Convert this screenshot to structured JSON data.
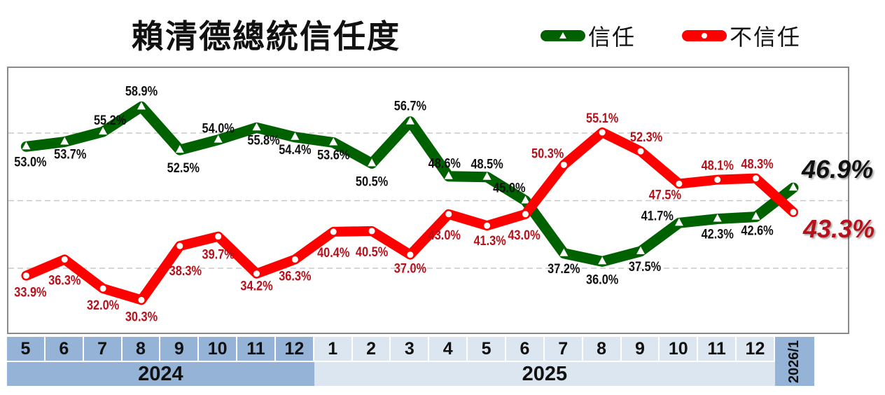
{
  "title": "賴清德總統信任度",
  "legend": [
    {
      "label": "信任",
      "color": "#006100",
      "marker": "triangle"
    },
    {
      "label": "不信任",
      "color": "#ff0000",
      "marker": "circle"
    }
  ],
  "axis": {
    "months": [
      "5",
      "6",
      "7",
      "8",
      "9",
      "10",
      "11",
      "12",
      "1",
      "2",
      "3",
      "4",
      "5",
      "6",
      "7",
      "8",
      "9",
      "10",
      "11",
      "12"
    ],
    "month_years": [
      "2024",
      "2024",
      "2024",
      "2024",
      "2024",
      "2024",
      "2024",
      "2024",
      "2025",
      "2025",
      "2025",
      "2025",
      "2025",
      "2025",
      "2025",
      "2025",
      "2025",
      "2025",
      "2025",
      "2025"
    ],
    "years": [
      {
        "label": "2024",
        "span": 8
      },
      {
        "label": "2025",
        "span": 12
      }
    ],
    "last_column": "2026/1"
  },
  "chart_data": {
    "type": "line",
    "title": "賴清德總統信任度",
    "xlabel": "",
    "ylabel": "",
    "categories": [
      "2024/5",
      "2024/6",
      "2024/7",
      "2024/8",
      "2024/9",
      "2024/10",
      "2024/11",
      "2024/12",
      "2025/1",
      "2025/2",
      "2025/3",
      "2025/4",
      "2025/5",
      "2025/6",
      "2025/7",
      "2025/8",
      "2025/9",
      "2025/10",
      "2025/11",
      "2025/12",
      "2026/1"
    ],
    "series": [
      {
        "name": "信任",
        "color": "#006100",
        "values": [
          53.0,
          53.7,
          55.2,
          58.9,
          52.5,
          54.0,
          55.8,
          54.4,
          53.6,
          50.5,
          56.7,
          48.6,
          48.5,
          45.0,
          37.2,
          36.0,
          37.5,
          41.7,
          42.3,
          42.6,
          46.9
        ],
        "labels": [
          "53.0%",
          "53.7%",
          "55.2%",
          "58.9%",
          "52.5%",
          "54.0%",
          "55.8%",
          "54.4%",
          "53.6%",
          "50.5%",
          "56.7%",
          "48.6%",
          "48.5%",
          "45.0%",
          "37.2%",
          "36.0%",
          "37.5%",
          "41.7%",
          "42.3%",
          "42.6%",
          "46.9%"
        ]
      },
      {
        "name": "不信任",
        "color": "#ff0000",
        "values": [
          33.9,
          36.3,
          32.0,
          30.3,
          38.3,
          39.7,
          34.2,
          36.3,
          40.4,
          40.5,
          37.0,
          43.0,
          41.3,
          43.0,
          50.3,
          55.1,
          52.3,
          47.5,
          48.1,
          48.3,
          43.3
        ],
        "labels": [
          "33.9%",
          "36.3%",
          "32.0%",
          "30.3%",
          "38.3%",
          "39.7%",
          "34.2%",
          "36.3%",
          "40.4%",
          "40.5%",
          "37.0%",
          "43.0%",
          "41.3%",
          "43.0%",
          "50.3%",
          "55.1%",
          "52.3%",
          "47.5%",
          "48.1%",
          "48.3%",
          "43.3%"
        ]
      }
    ],
    "gridlines": [
      35,
      45,
      55
    ],
    "grid": true,
    "ylim": [
      25,
      64.8
    ],
    "legend_position": "top-right",
    "highlight_last": {
      "信任": "46.9%",
      "不信任": "43.3%"
    }
  }
}
